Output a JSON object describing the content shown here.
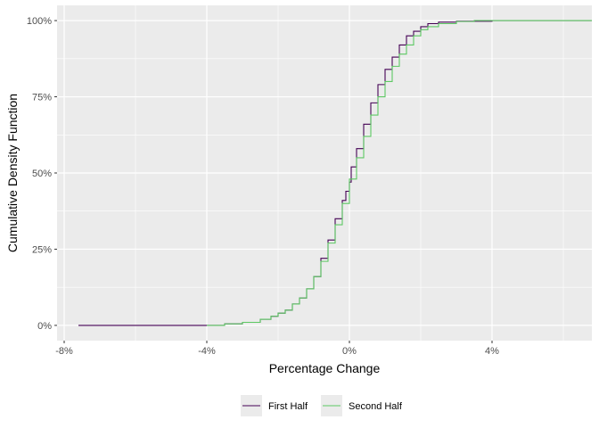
{
  "chart_data": {
    "type": "line",
    "step": true,
    "title": "",
    "xlabel": "Percentage Change",
    "ylabel": "Cumulative Density Function",
    "xlim": [
      -8.2,
      6.8
    ],
    "ylim": [
      -0.05,
      1.05
    ],
    "x_ticks": [
      -8,
      -4,
      0,
      4
    ],
    "x_tick_labels": [
      "-8%",
      "-4%",
      "0%",
      "4%"
    ],
    "y_ticks": [
      0,
      0.25,
      0.5,
      0.75,
      1.0
    ],
    "y_tick_labels": [
      "0%",
      "25%",
      "50%",
      "75%",
      "100%"
    ],
    "grid": true,
    "panel_background": "#EBEBEB",
    "legend_position": "bottom",
    "series": [
      {
        "name": "First Half",
        "color": "#440154",
        "x": [
          -7.6,
          -4.4,
          -3.5,
          -3.0,
          -2.5,
          -2.2,
          -2.0,
          -1.8,
          -1.6,
          -1.4,
          -1.2,
          -1.0,
          -0.8,
          -0.6,
          -0.4,
          -0.2,
          -0.1,
          0.0,
          0.05,
          0.2,
          0.4,
          0.6,
          0.8,
          1.0,
          1.2,
          1.4,
          1.6,
          1.8,
          2.0,
          2.2,
          2.5,
          3.0,
          4.0,
          6.8
        ],
        "y": [
          0.0,
          0.0,
          0.005,
          0.01,
          0.02,
          0.03,
          0.04,
          0.05,
          0.07,
          0.09,
          0.12,
          0.16,
          0.22,
          0.28,
          0.35,
          0.41,
          0.44,
          0.47,
          0.52,
          0.58,
          0.66,
          0.73,
          0.79,
          0.84,
          0.88,
          0.92,
          0.95,
          0.965,
          0.98,
          0.99,
          0.995,
          0.998,
          1.0,
          1.0
        ]
      },
      {
        "name": "Second Half",
        "color": "#5DC863",
        "x": [
          -4.0,
          -3.5,
          -3.0,
          -2.5,
          -2.2,
          -2.0,
          -1.8,
          -1.6,
          -1.4,
          -1.2,
          -1.0,
          -0.8,
          -0.6,
          -0.4,
          -0.2,
          0.0,
          0.2,
          0.4,
          0.6,
          0.8,
          1.0,
          1.2,
          1.4,
          1.6,
          1.8,
          2.0,
          2.2,
          2.5,
          3.0,
          3.5,
          6.8
        ],
        "y": [
          0.0,
          0.005,
          0.01,
          0.02,
          0.03,
          0.04,
          0.05,
          0.07,
          0.09,
          0.12,
          0.16,
          0.21,
          0.27,
          0.33,
          0.4,
          0.48,
          0.55,
          0.62,
          0.69,
          0.75,
          0.8,
          0.85,
          0.89,
          0.92,
          0.95,
          0.97,
          0.98,
          0.99,
          0.997,
          1.0,
          1.0
        ]
      }
    ]
  }
}
